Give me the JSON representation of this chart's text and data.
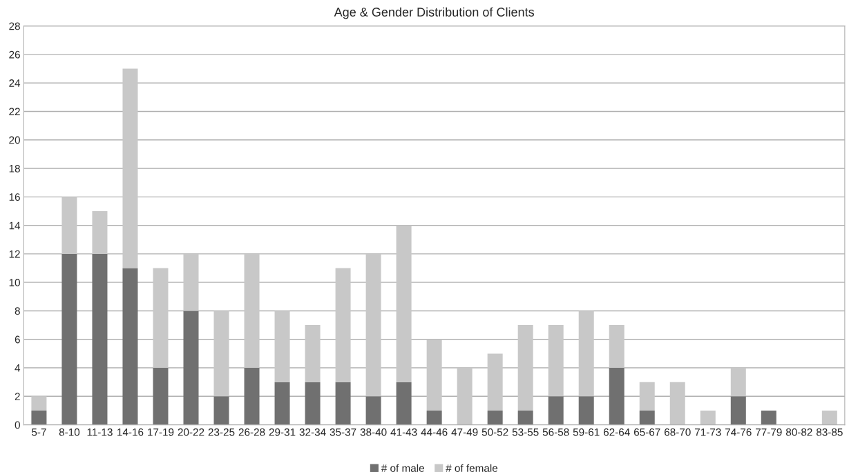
{
  "chart_data": {
    "type": "bar",
    "title": "Age & Gender Distribution of Clients",
    "categories": [
      "5-7",
      "8-10",
      "11-13",
      "14-16",
      "17-19",
      "20-22",
      "23-25",
      "26-28",
      "29-31",
      "32-34",
      "35-37",
      "38-40",
      "41-43",
      "44-46",
      "47-49",
      "50-52",
      "53-55",
      "56-58",
      "59-61",
      "62-64",
      "65-67",
      "68-70",
      "71-73",
      "74-76",
      "77-79",
      "80-82",
      "83-85"
    ],
    "series": [
      {
        "name": "# of male",
        "color": "#707070",
        "values": [
          1,
          12,
          12,
          11,
          4,
          8,
          2,
          4,
          3,
          3,
          3,
          2,
          3,
          1,
          0,
          1,
          1,
          2,
          2,
          4,
          1,
          0,
          0,
          2,
          1,
          0,
          0
        ]
      },
      {
        "name": "# of female",
        "color": "#c8c8c8",
        "values": [
          1,
          4,
          3,
          14,
          7,
          4,
          6,
          8,
          5,
          4,
          8,
          10,
          11,
          5,
          4,
          4,
          6,
          5,
          6,
          3,
          2,
          3,
          1,
          2,
          0,
          0,
          1
        ]
      }
    ],
    "stacked": true,
    "ylim": [
      0,
      28
    ],
    "yticks": [
      0,
      2,
      4,
      6,
      8,
      10,
      12,
      14,
      16,
      18,
      20,
      22,
      24,
      26,
      28
    ],
    "grid": "y",
    "legend": "bottom"
  }
}
